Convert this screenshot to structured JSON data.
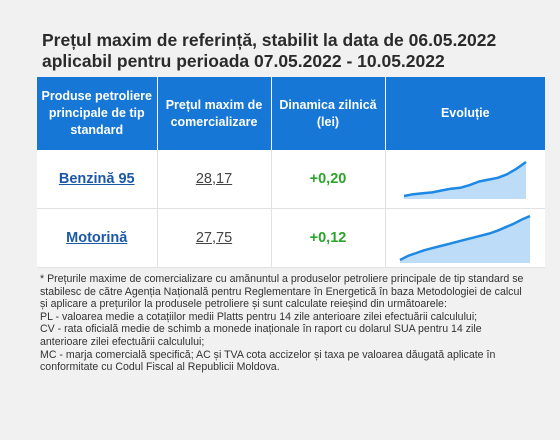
{
  "title": {
    "line1": "Prețul maxim de referință, stabilit la data de 06.05.2022",
    "line2": "aplicabil pentru perioada 07.05.2022 - 10.05.2022"
  },
  "table": {
    "headers": {
      "product": "Produse petroliere principale de tip standard",
      "price": "Prețul maxim de comercializare",
      "delta": "Dinamica zilnică (lei)",
      "evolution": "Evoluție"
    },
    "rows": [
      {
        "product": "Benzină 95",
        "price": "28,17",
        "delta": "+0,20",
        "trend": [
          26.3,
          26.4,
          26.45,
          26.5,
          26.6,
          26.7,
          26.75,
          26.9,
          27.1,
          27.2,
          27.3,
          27.5,
          27.8,
          28.17
        ]
      },
      {
        "product": "Motorină",
        "price": "27,75",
        "delta": "+0,12",
        "trend": [
          24.6,
          24.9,
          25.1,
          25.3,
          25.45,
          25.6,
          25.75,
          25.9,
          26.05,
          26.2,
          26.35,
          26.5,
          26.7,
          26.95,
          27.2,
          27.5,
          27.75
        ]
      }
    ]
  },
  "colors": {
    "header_bg": "#1677d6",
    "link": "#1b58a8",
    "positive": "#2aa52a",
    "spark_line": "#1e88e5",
    "spark_fill": "#bcdcf8"
  },
  "notes": [
    "* Prețurile maxime de comercializare cu amănuntul a produselor petroliere principale de tip standard se stabilesc de către Agenția Națională pentru Reglementare în Energetică în baza Metodologiei de calcul și aplicare a prețurilor la produsele petroliere și sunt calculate reieșind din următoarele:",
    "PL - valoarea medie a cotațiilor medii Platts pentru 14 zile anterioare zilei efectuării calculului;",
    "CV - rata oficială medie de schimb a monede inaționale în raport cu dolarul SUA pentru 14 zile anterioare zilei efectuării calculului;",
    "MC - marja comercială specifică; AC și TVA cota accizelor și taxa pe valoarea dăugată aplicate în conformitate cu Codul Fiscal al Republicii Moldova."
  ]
}
